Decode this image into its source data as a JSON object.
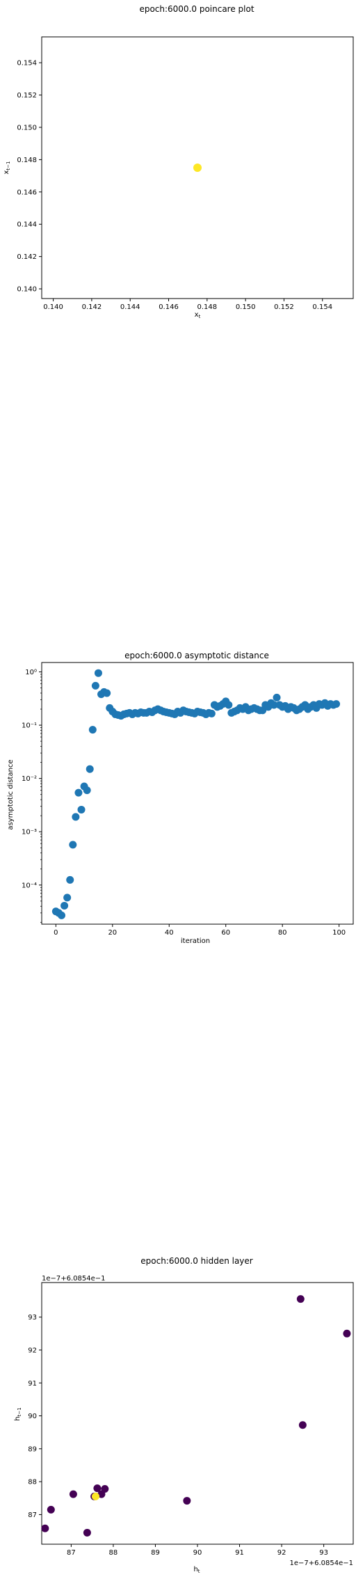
{
  "chart_data": [
    {
      "type": "scatter",
      "title": "epoch:6000.0 poincare plot",
      "xlabel": "x_t",
      "ylabel": "x_{t-1}",
      "xlim": [
        0.1394,
        0.1556
      ],
      "ylim": [
        0.1394,
        0.1556
      ],
      "xticks": [
        0.14,
        0.142,
        0.144,
        0.146,
        0.148,
        0.15,
        0.152,
        0.154
      ],
      "yticks": [
        0.14,
        0.142,
        0.144,
        0.146,
        0.148,
        0.15,
        0.152,
        0.154
      ],
      "xtick_labels": [
        "0.140",
        "0.142",
        "0.144",
        "0.146",
        "0.148",
        "0.150",
        "0.152",
        "0.154"
      ],
      "ytick_labels": [
        "0.140",
        "0.142",
        "0.144",
        "0.146",
        "0.148",
        "0.150",
        "0.152",
        "0.154"
      ],
      "points": [
        {
          "x": 0.1475,
          "y": 0.1475,
          "color": "#fde725"
        }
      ]
    },
    {
      "type": "scatter",
      "title": "epoch:6000.0 asymptotic distance",
      "xlabel": "iteration",
      "ylabel": "asymptotic distance",
      "yscale": "log",
      "xlim": [
        -5,
        105
      ],
      "ylim": [
        1.845e-05,
        1.5
      ],
      "xticks": [
        0,
        20,
        40,
        60,
        80,
        100
      ],
      "xtick_labels": [
        "0",
        "20",
        "40",
        "60",
        "80",
        "100"
      ],
      "yticks": [
        0.0001,
        0.001,
        0.01,
        0.1,
        1
      ],
      "ytick_labels": [
        "10⁻⁴",
        "10⁻³",
        "10⁻²",
        "10⁻¹",
        "10⁰"
      ],
      "color": "#1f77b4",
      "x": [
        0,
        1,
        2,
        3,
        4,
        5,
        6,
        7,
        8,
        9,
        10,
        11,
        12,
        13,
        14,
        15,
        16,
        17,
        18,
        19,
        20,
        21,
        22,
        23,
        24,
        25,
        26,
        27,
        28,
        29,
        30,
        31,
        32,
        33,
        34,
        35,
        36,
        37,
        38,
        39,
        40,
        41,
        42,
        43,
        44,
        45,
        46,
        47,
        48,
        49,
        50,
        51,
        52,
        53,
        54,
        55,
        56,
        57,
        58,
        59,
        60,
        61,
        62,
        63,
        64,
        65,
        66,
        67,
        68,
        69,
        70,
        71,
        72,
        73,
        74,
        75,
        76,
        77,
        78,
        79,
        80,
        81,
        82,
        83,
        84,
        85,
        86,
        87,
        88,
        89,
        90,
        91,
        92,
        93,
        94,
        95,
        96,
        97,
        98,
        99
      ],
      "y": [
        3.2e-05,
        3e-05,
        2.7e-05,
        4.1e-05,
        5.8e-05,
        0.000125,
        0.00057,
        0.0019,
        0.0054,
        0.0026,
        0.0071,
        0.006,
        0.015,
        0.082,
        0.55,
        0.95,
        0.38,
        0.42,
        0.4,
        0.21,
        0.18,
        0.16,
        0.155,
        0.15,
        0.16,
        0.165,
        0.17,
        0.16,
        0.17,
        0.165,
        0.175,
        0.17,
        0.17,
        0.18,
        0.175,
        0.19,
        0.2,
        0.19,
        0.18,
        0.175,
        0.17,
        0.165,
        0.16,
        0.18,
        0.17,
        0.19,
        0.18,
        0.175,
        0.17,
        0.165,
        0.18,
        0.175,
        0.17,
        0.16,
        0.17,
        0.165,
        0.24,
        0.22,
        0.23,
        0.25,
        0.28,
        0.24,
        0.17,
        0.18,
        0.19,
        0.21,
        0.2,
        0.22,
        0.19,
        0.2,
        0.21,
        0.2,
        0.19,
        0.19,
        0.24,
        0.22,
        0.26,
        0.24,
        0.33,
        0.24,
        0.22,
        0.23,
        0.2,
        0.22,
        0.21,
        0.19,
        0.2,
        0.22,
        0.24,
        0.2,
        0.22,
        0.24,
        0.21,
        0.25,
        0.24,
        0.26,
        0.23,
        0.25,
        0.24,
        0.25
      ]
    },
    {
      "type": "scatter",
      "title": "epoch:6000.0 hidden layer",
      "xlabel": "h_t",
      "ylabel": "h_{t-1}",
      "x_offset_label": "1e−7+6.0854e−1",
      "y_offset_label": "1e−7+6.0854e−1",
      "xlim": [
        86.3,
        93.7
      ],
      "ylim": [
        86.1,
        94.05
      ],
      "xticks": [
        87,
        88,
        89,
        90,
        91,
        92,
        93
      ],
      "yticks": [
        87,
        88,
        89,
        90,
        91,
        92,
        93
      ],
      "xtick_labels": [
        "87",
        "88",
        "89",
        "90",
        "91",
        "92",
        "93"
      ],
      "ytick_labels": [
        "87",
        "88",
        "89",
        "90",
        "91",
        "92",
        "93"
      ],
      "points": [
        {
          "x": 86.38,
          "y": 86.58,
          "color": "#440154"
        },
        {
          "x": 86.52,
          "y": 87.15,
          "color": "#440154"
        },
        {
          "x": 87.05,
          "y": 87.62,
          "color": "#440154"
        },
        {
          "x": 87.38,
          "y": 86.45,
          "color": "#440154"
        },
        {
          "x": 87.55,
          "y": 87.55,
          "color": "#440154"
        },
        {
          "x": 87.62,
          "y": 87.8,
          "color": "#440154"
        },
        {
          "x": 87.72,
          "y": 87.62,
          "color": "#440154"
        },
        {
          "x": 87.8,
          "y": 87.78,
          "color": "#440154"
        },
        {
          "x": 89.75,
          "y": 87.42,
          "color": "#440154"
        },
        {
          "x": 92.45,
          "y": 93.55,
          "color": "#440154"
        },
        {
          "x": 92.5,
          "y": 89.72,
          "color": "#440154"
        },
        {
          "x": 93.55,
          "y": 92.5,
          "color": "#440154"
        },
        {
          "x": 87.58,
          "y": 87.55,
          "color": "#fde725"
        }
      ]
    }
  ]
}
